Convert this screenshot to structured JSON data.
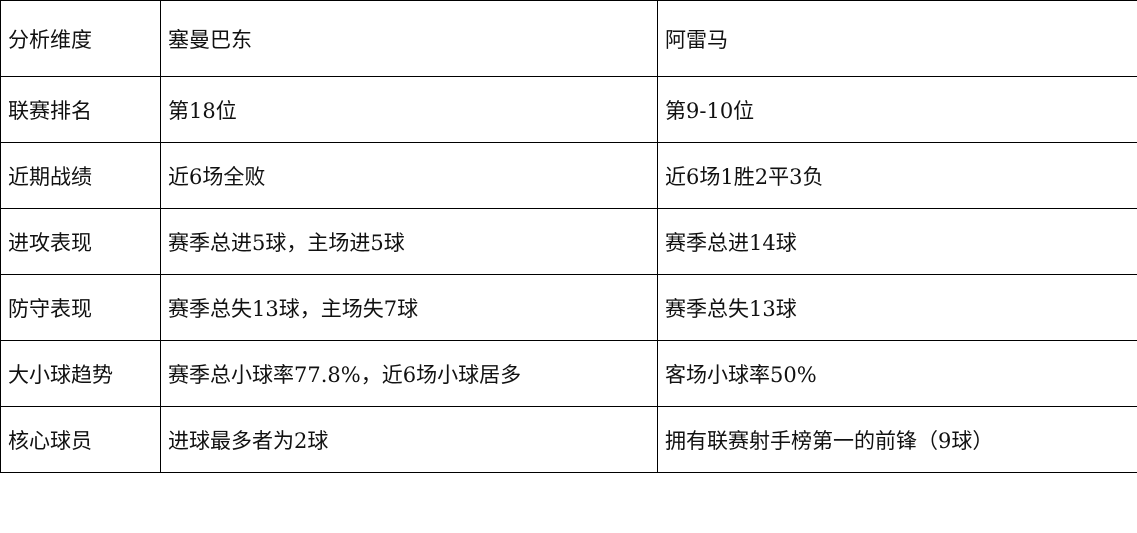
{
  "table": {
    "header": [
      "分析维度",
      "塞曼巴东",
      "阿雷马"
    ],
    "rows": [
      [
        "联赛排名",
        "第18位",
        "第9-10位"
      ],
      [
        "近期战绩",
        "近6场全败",
        "近6场1胜2平3负"
      ],
      [
        "进攻表现",
        "赛季总进5球，主场进5球",
        "赛季总进14球"
      ],
      [
        "防守表现",
        "赛季总失13球，主场失7球",
        "赛季总失13球"
      ],
      [
        "大小球趋势",
        "赛季总小球率77.8%，近6场小球居多",
        "客场小球率50%"
      ],
      [
        "核心球员",
        "进球最多者为2球",
        "拥有联赛射手榜第一的前锋（9球）"
      ]
    ]
  }
}
